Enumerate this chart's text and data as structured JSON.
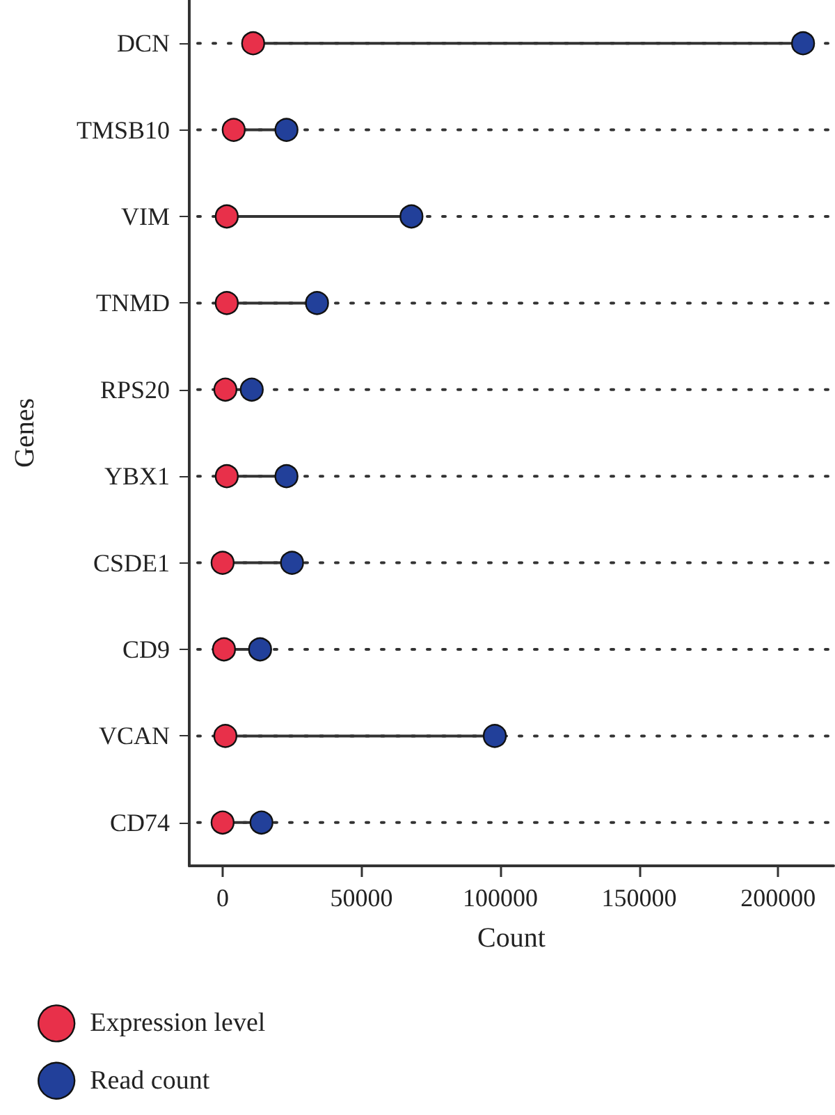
{
  "chart_data": {
    "type": "scatter",
    "orientation": "horizontal",
    "xlabel": "Count",
    "ylabel": "Genes",
    "categories": [
      "DCN",
      "TMSB10",
      "VIM",
      "TNMD",
      "RPS20",
      "YBX1",
      "CSDE1",
      "CD9",
      "VCAN",
      "CD74"
    ],
    "series": [
      {
        "name": "Expression level",
        "color": "#e8304a",
        "values": [
          11000,
          4000,
          1500,
          1500,
          1000,
          1500,
          0,
          500,
          1000,
          0
        ]
      },
      {
        "name": "Read count",
        "color": "#22409a",
        "values": [
          209000,
          23000,
          68000,
          34000,
          10500,
          23000,
          25000,
          13500,
          98000,
          14000
        ]
      }
    ],
    "xlim": [
      -12000,
      220000
    ],
    "xticks": [
      0,
      50000,
      100000,
      150000,
      200000
    ],
    "grid": "y",
    "legend": "bottom left",
    "marker": "circle"
  }
}
